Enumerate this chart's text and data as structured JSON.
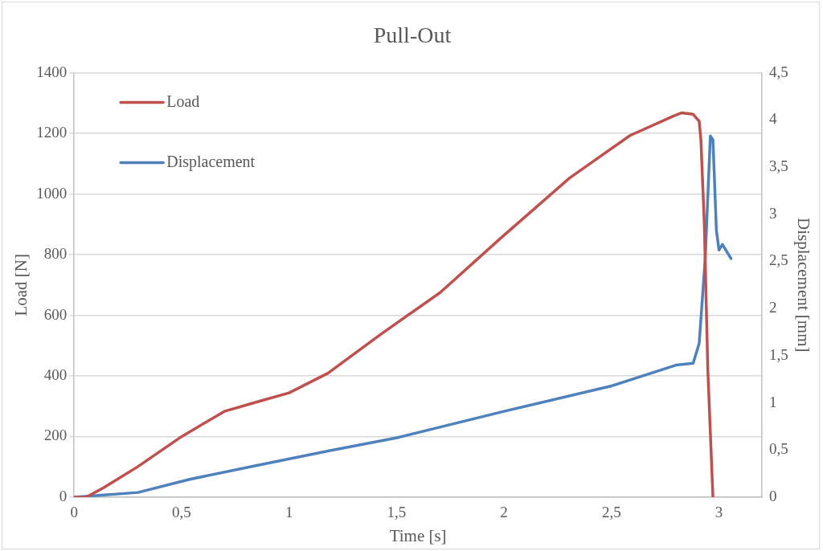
{
  "chart_data": {
    "type": "line",
    "title": "Pull-Out",
    "xlabel": "Time [s]",
    "ylabel": "Load [N]",
    "y2label": "Displacement [mm]",
    "xlim": [
      0,
      3.2
    ],
    "xticks": [
      0,
      {
        "value": 0.5,
        "label": "0,5"
      },
      1,
      {
        "value": 1.5,
        "label": "1,5"
      },
      2,
      {
        "value": 2.5,
        "label": "2,5"
      },
      3
    ],
    "ylim": [
      0,
      1400
    ],
    "yticks": [
      0,
      200,
      400,
      600,
      800,
      1000,
      1200,
      1400
    ],
    "y2lim": [
      0,
      4.5
    ],
    "y2ticks": [
      0,
      {
        "value": 0.5,
        "label": "0,5"
      },
      1,
      {
        "value": 1.5,
        "label": "1,5"
      },
      2,
      {
        "value": 2.5,
        "label": "2,5"
      },
      3,
      {
        "value": 3.5,
        "label": "3,5"
      },
      4,
      {
        "value": 4.5,
        "label": "4,5"
      }
    ],
    "grid": "y",
    "legend": "top left",
    "marker": "none",
    "line_style": "solid",
    "series": [
      {
        "name": "Load",
        "color": "#c0504d",
        "x": [
          0,
          0.056,
          0.137,
          0.297,
          0.498,
          0.699,
          0.859,
          1.0,
          1.181,
          1.422,
          1.703,
          1.984,
          2.305,
          2.586,
          2.787,
          2.827,
          2.88,
          2.908,
          2.916,
          2.932,
          2.948,
          2.972
        ],
        "values": [
          0,
          0,
          31,
          101,
          199,
          283,
          316,
          344,
          409,
          535,
          675,
          854,
          1053,
          1193,
          1257,
          1268,
          1263,
          1240,
          1179,
          899,
          423,
          0
        ]
      },
      {
        "name": "Displacement",
        "color": "#4f81bd",
        "axis": "y2",
        "x": [
          0,
          0.297,
          0.538,
          0.859,
          1.181,
          1.502,
          2.0,
          2.5,
          2.8,
          2.88,
          2.908,
          2.936,
          2.96,
          2.972,
          2.988,
          3.0,
          3.016,
          3.056
        ],
        "values": [
          0,
          0.05,
          0.19,
          0.34,
          0.49,
          0.63,
          0.91,
          1.18,
          1.4,
          1.42,
          1.63,
          2.53,
          3.83,
          3.79,
          2.83,
          2.62,
          2.68,
          2.53
        ]
      }
    ]
  }
}
